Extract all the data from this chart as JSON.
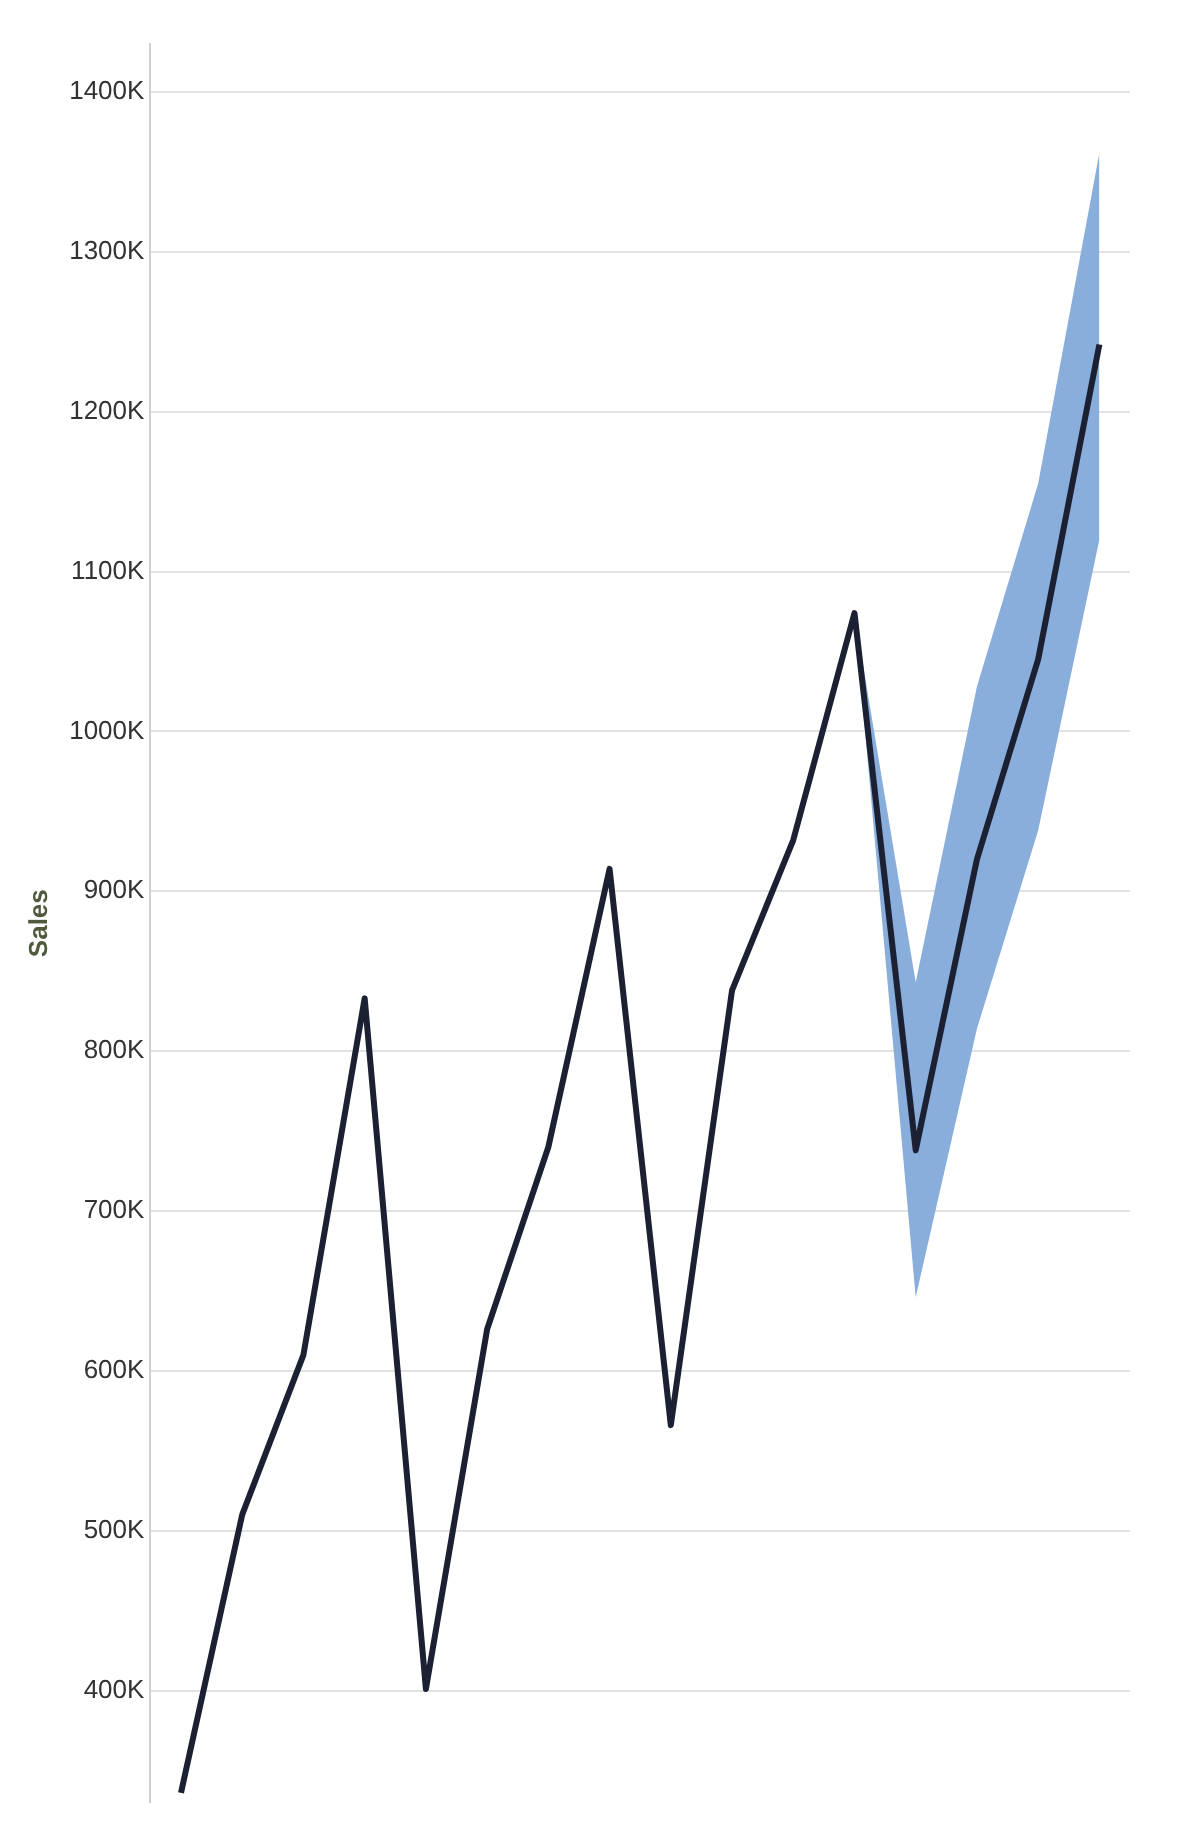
{
  "chart_data": {
    "type": "line",
    "ylabel": "Sales",
    "categories": [
      null,
      null,
      null,
      null,
      null,
      null,
      null,
      null,
      null,
      null,
      null,
      null,
      null,
      null,
      null,
      null
    ],
    "series": [
      {
        "color": "#1b2033",
        "values": [
          336,
          510,
          610,
          833,
          401,
          626,
          740,
          914,
          566,
          838,
          932,
          1074,
          738,
          920,
          1045,
          1242
        ],
        "lower": [
          null,
          null,
          null,
          null,
          null,
          null,
          null,
          null,
          null,
          null,
          null,
          1074,
          646,
          814,
          938,
          1120
        ],
        "upper": [
          null,
          null,
          null,
          null,
          null,
          null,
          null,
          null,
          null,
          null,
          null,
          1074,
          843,
          1028,
          1155,
          1362
        ]
      }
    ],
    "ylim": [
      330,
      1430
    ],
    "yticks": [
      {
        "value": 400,
        "label": "400K"
      },
      {
        "value": 500,
        "label": "500K"
      },
      {
        "value": 600,
        "label": "600K"
      },
      {
        "value": 700,
        "label": "700K"
      },
      {
        "value": 800,
        "label": "800K"
      },
      {
        "value": 900,
        "label": "900K"
      },
      {
        "value": 1000,
        "label": "1000K"
      },
      {
        "value": 1100,
        "label": "1100K"
      },
      {
        "value": 1200,
        "label": "1200K"
      },
      {
        "value": 1300,
        "label": "1300K"
      },
      {
        "value": 1400,
        "label": "1400K"
      }
    ],
    "grid": "y",
    "legend": false,
    "tick_labels": "y"
  }
}
